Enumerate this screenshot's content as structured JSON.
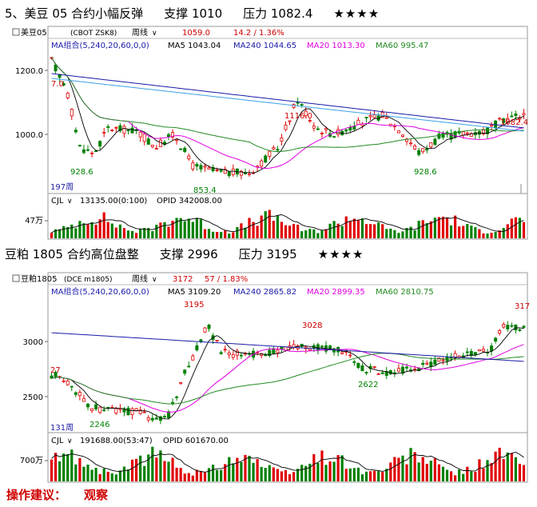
{
  "chart_data": [
    {
      "type": "candlestick",
      "heading": {
        "prefix": "5、",
        "name": "美豆 05 合约小幅反弹",
        "support_label": "支撑 1010",
        "pressure_label": "压力 1082.4",
        "stars": "★★★★"
      },
      "header": {
        "symbol": "美豆05",
        "code": "(CBOT ZSK8)",
        "period": "周线",
        "price": "1059.0",
        "change": "14.2 / 1.36%"
      },
      "ma_legend": {
        "group": "MA组合(5,240,20,60,0,0)",
        "ma5": "MA5 1043.04",
        "ma240": "MA240 1044.65",
        "ma20": "MA20 1013.30",
        "ma60": "MA60 995.47"
      },
      "y_ticks": [
        "1200.0",
        "1000.0"
      ],
      "y_tick_values": [
        1200,
        1000
      ],
      "ylim": [
        820,
        1260
      ],
      "annotations": [
        "7.0",
        "928.6",
        "853.4",
        "1116.0",
        "928.6",
        "1082.4"
      ],
      "period_label": "197周",
      "volume": {
        "label": "CJL",
        "value": "13135.00(0:100)",
        "opi": "OPID  342008.00",
        "tick": "47万"
      },
      "colors": {
        "up": "#e00000",
        "down": "#008000",
        "ma5": "#000000",
        "ma20": "#e000e0",
        "ma60": "#228b22",
        "ma240": "#1a1aa8",
        "trend": "#3aa0e8"
      }
    },
    {
      "type": "candlestick",
      "heading": {
        "prefix": "",
        "name": "豆粕 1805 合约高位盘整",
        "support_label": "支撑 2996",
        "pressure_label": "压力 3195",
        "stars": "★★★★"
      },
      "header": {
        "symbol": "豆粕1805",
        "code": "(DCE m1805)",
        "period": "周线",
        "price": "3172",
        "change": "57 / 1.83%"
      },
      "ma_legend": {
        "group": "MA组合(5,240,20,60,0,0)",
        "ma5": "MA5 3109.20",
        "ma240": "MA240 2865.82",
        "ma20": "MA20 2899.35",
        "ma60": "MA60 2810.75"
      },
      "y_ticks": [
        "3000",
        "2500"
      ],
      "y_tick_values": [
        3000,
        2500
      ],
      "ylim": [
        2180,
        3400
      ],
      "annotations": [
        "27",
        "2246",
        "3195",
        "3028",
        "2622",
        "317"
      ],
      "period_label": "131周",
      "volume": {
        "label": "CJL",
        "value": "191688.00(53:47)",
        "opi": "OPID  601670.00",
        "tick": "700万"
      },
      "colors": {
        "up": "#e00000",
        "down": "#008000",
        "ma5": "#000000",
        "ma20": "#e000e0",
        "ma60": "#228b22",
        "ma240": "#1a1aa8",
        "trend": "#3aa0e8"
      }
    }
  ],
  "advice": {
    "label": "操作建议：",
    "value": "观察"
  }
}
